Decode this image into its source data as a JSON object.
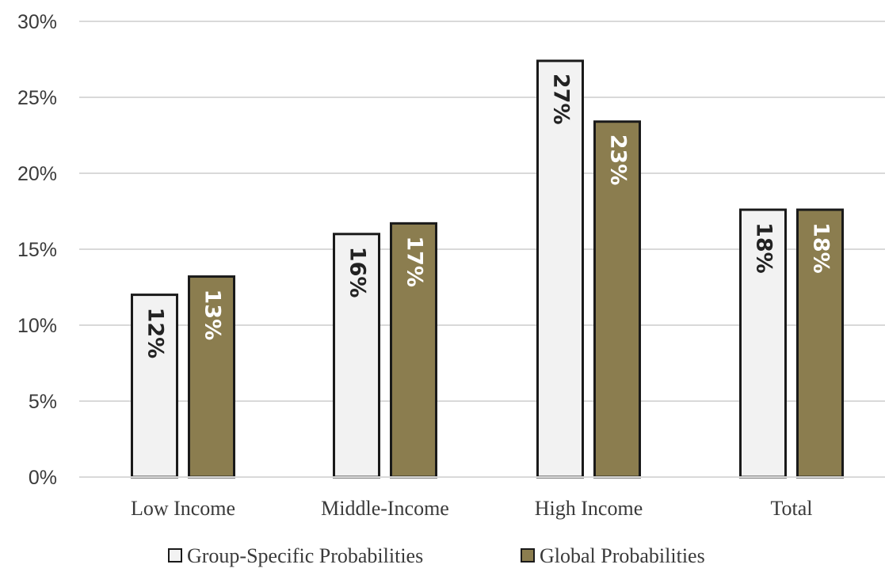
{
  "chart_data": {
    "type": "bar",
    "title": "",
    "xlabel": "",
    "ylabel": "",
    "categories": [
      "Low Income",
      "Middle-Income",
      "High Income",
      "Total"
    ],
    "series": [
      {
        "name": "Group-Specific Probabilities",
        "values": [
          12,
          16,
          27.4,
          17.6
        ],
        "labels": [
          "12%",
          "16%",
          "27%",
          "18%"
        ],
        "color": "#f2f2f2",
        "label_color": "#222222"
      },
      {
        "name": "Global Probabilities",
        "values": [
          13.2,
          16.7,
          23.4,
          17.6
        ],
        "labels": [
          "13%",
          "17%",
          "23%",
          "18%"
        ],
        "color": "#8b7d4f",
        "label_color": "#ffffff"
      }
    ],
    "ylim": [
      0,
      30
    ],
    "yticks": [
      0,
      5,
      10,
      15,
      20,
      25,
      30
    ],
    "ytick_labels": [
      "0%",
      "5%",
      "10%",
      "15%",
      "20%",
      "25%",
      "30%"
    ],
    "grid": true,
    "grid_color": "#d9d9d9",
    "bar_border_color": "#1a1a1a",
    "legend": "bottom"
  }
}
